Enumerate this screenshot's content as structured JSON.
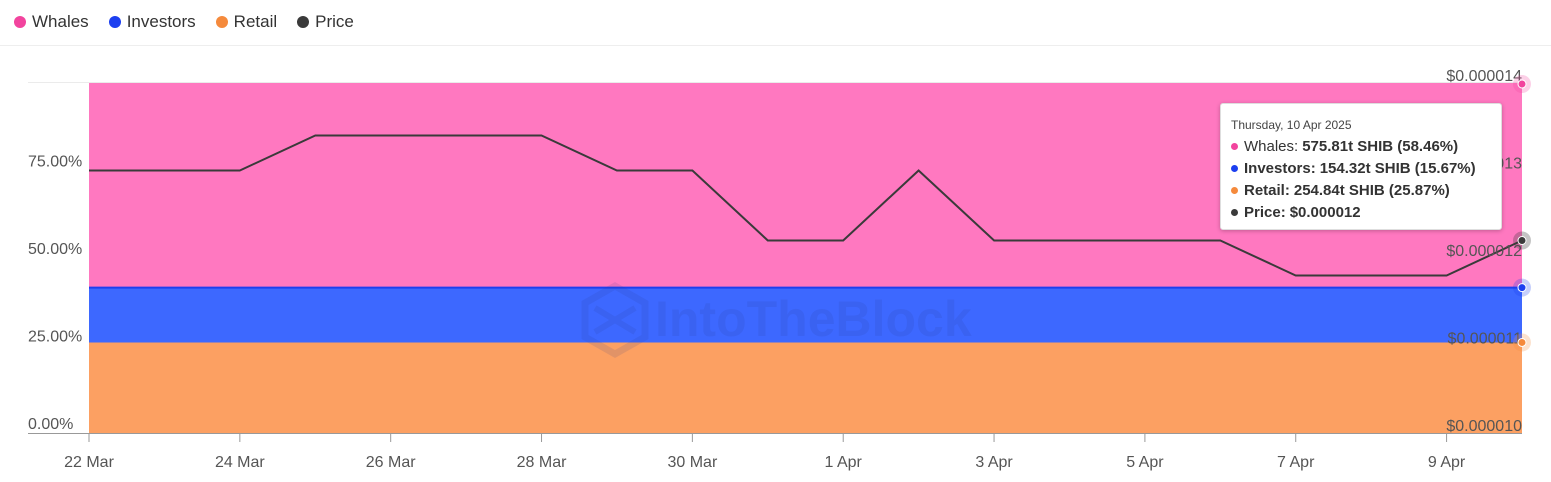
{
  "legend": {
    "items": [
      {
        "label": "Whales",
        "color": "#f2449e"
      },
      {
        "label": "Investors",
        "color": "#1c3ff0"
      },
      {
        "label": "Retail",
        "color": "#f58a3c"
      },
      {
        "label": "Price",
        "color": "#3a3a3a"
      }
    ]
  },
  "watermark": "IntoTheBlock",
  "tooltip": {
    "date": "Thursday, 10 Apr 2025",
    "rows": [
      {
        "name": "Whales",
        "value": "575.81t SHIB (58.46%)",
        "color": "#f2449e"
      },
      {
        "name": "Investors",
        "value": "154.32t SHIB (15.67%)",
        "color": "#1c3ff0"
      },
      {
        "name": "Retail",
        "value": "254.84t SHIB (25.87%)",
        "color": "#f58a3c"
      },
      {
        "name": "Price",
        "value": "$0.000012",
        "color": "#3a3a3a"
      }
    ]
  },
  "chart_data": {
    "type": "area",
    "x": [
      "22 Mar",
      "23 Mar",
      "24 Mar",
      "25 Mar",
      "26 Mar",
      "27 Mar",
      "28 Mar",
      "29 Mar",
      "30 Mar",
      "31 Mar",
      "1 Apr",
      "2 Apr",
      "3 Apr",
      "4 Apr",
      "5 Apr",
      "6 Apr",
      "7 Apr",
      "8 Apr",
      "9 Apr",
      "10 Apr"
    ],
    "x_tick_labels": [
      "22 Mar",
      "24 Mar",
      "26 Mar",
      "28 Mar",
      "30 Mar",
      "1 Apr",
      "3 Apr",
      "5 Apr",
      "7 Apr",
      "9 Apr"
    ],
    "stacked_percent": true,
    "series": [
      {
        "name": "Retail",
        "color": "#fca062",
        "values": [
          25.87,
          25.87,
          25.87,
          25.87,
          25.87,
          25.87,
          25.87,
          25.87,
          25.87,
          25.87,
          25.87,
          25.87,
          25.87,
          25.87,
          25.87,
          25.87,
          25.87,
          25.87,
          25.87,
          25.87
        ]
      },
      {
        "name": "Investors",
        "color": "#3d68ff",
        "values": [
          15.67,
          15.67,
          15.67,
          15.67,
          15.67,
          15.67,
          15.67,
          15.67,
          15.67,
          15.67,
          15.67,
          15.67,
          15.67,
          15.67,
          15.67,
          15.67,
          15.67,
          15.67,
          15.67,
          15.67
        ]
      },
      {
        "name": "Whales",
        "color": "#ff78c0",
        "values": [
          58.46,
          58.46,
          58.46,
          58.46,
          58.46,
          58.46,
          58.46,
          58.46,
          58.46,
          58.46,
          58.46,
          58.46,
          58.46,
          58.46,
          58.46,
          58.46,
          58.46,
          58.46,
          58.46,
          58.46
        ]
      }
    ],
    "price_series": {
      "name": "Price",
      "color": "#3a3a3a",
      "values": [
        1.3e-05,
        1.3e-05,
        1.3e-05,
        1.34e-05,
        1.34e-05,
        1.34e-05,
        1.34e-05,
        1.3e-05,
        1.3e-05,
        1.22e-05,
        1.22e-05,
        1.3e-05,
        1.22e-05,
        1.22e-05,
        1.22e-05,
        1.22e-05,
        1.18e-05,
        1.18e-05,
        1.18e-05,
        1.22e-05
      ]
    },
    "left_axis": {
      "ticks": [
        "0.00%",
        "25.00%",
        "50.00%",
        "75.00%"
      ],
      "tick_values": [
        0,
        25,
        50,
        75
      ],
      "ylim": [
        0,
        100
      ]
    },
    "right_axis": {
      "ticks": [
        "$0.000010",
        "$0.000011",
        "$0.000012",
        "$0.000013",
        "$0.000014"
      ],
      "tick_values": [
        1e-05,
        1.1e-05,
        1.2e-05,
        1.3e-05,
        1.4e-05
      ],
      "ylim": [
        1e-05,
        1.4e-05
      ]
    }
  }
}
